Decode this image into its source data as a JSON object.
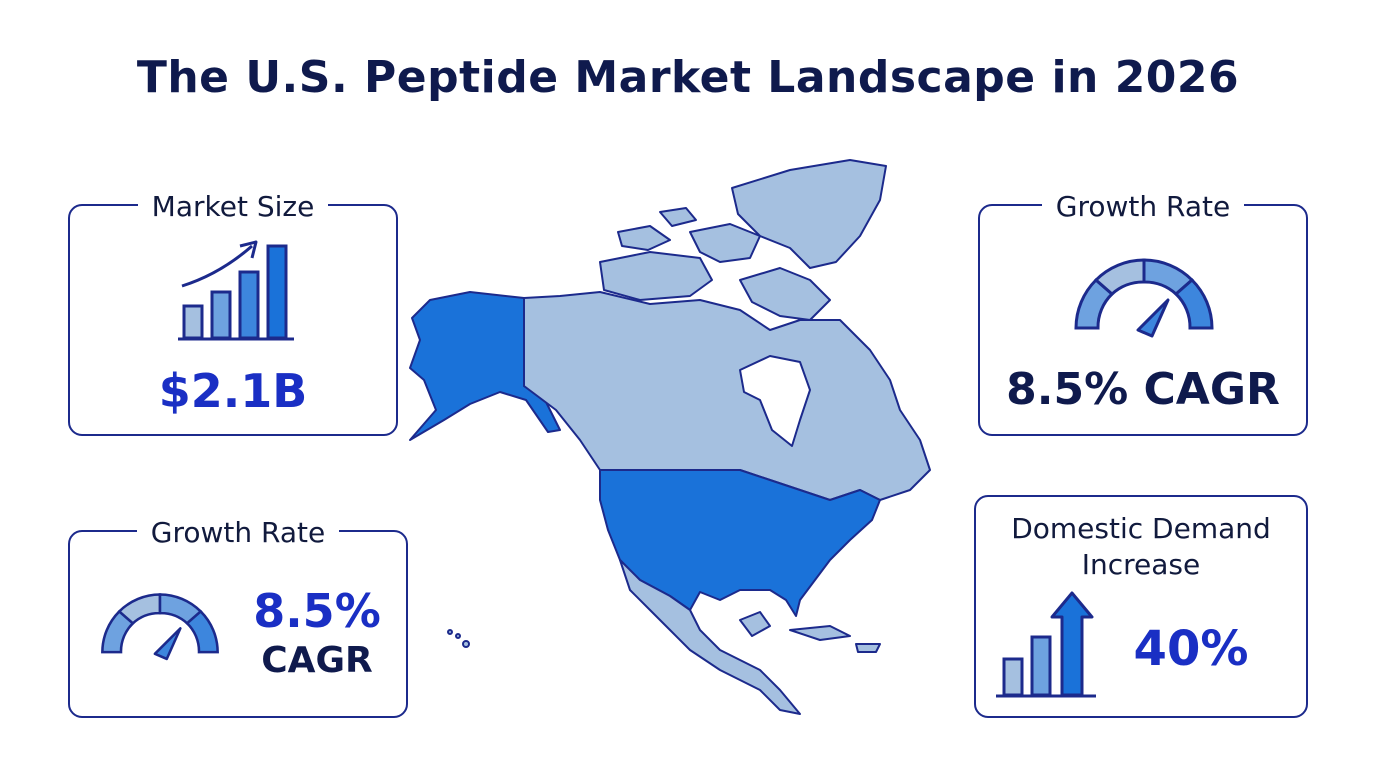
{
  "title": "The U.S. Peptide Market Landscape in 2026",
  "cards": {
    "market_size": {
      "label": "Market Size",
      "value": "$2.1B",
      "icon": "bar-chart-growth-icon"
    },
    "growth_rate_top": {
      "label": "Growth Rate",
      "value": "8.5% CAGR",
      "icon": "gauge-icon"
    },
    "growth_rate_bottom": {
      "label": "Growth Rate",
      "value_line1": "8.5%",
      "value_line2": "CAGR",
      "icon": "gauge-icon"
    },
    "domestic_demand": {
      "label_line1": "Domestic Demand",
      "label_line2": "Increase",
      "value": "40%",
      "icon": "bar-chart-up-arrow-icon"
    }
  },
  "map": {
    "icon": "north-america-map-icon"
  },
  "colors": {
    "navy": "#0f1a4d",
    "accent_blue": "#1a2fc4",
    "usa_blue": "#1a72d9",
    "region_light": "#a5c0e0",
    "border": "#1c2a8c"
  }
}
